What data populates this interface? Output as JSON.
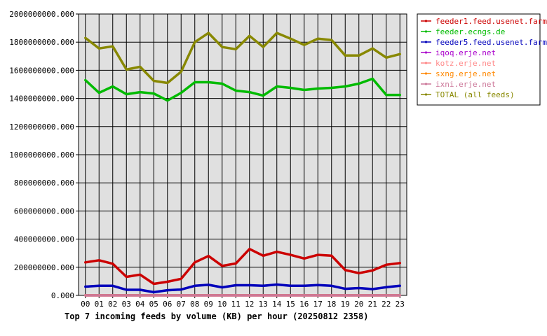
{
  "chart_data": {
    "type": "line",
    "title": "Top 7 incoming feeds by volume (KB) per hour (20250812 2358)",
    "xlabel": "",
    "ylabel": "",
    "grid": true,
    "legend_position": "top-right",
    "ylim": [
      0,
      2000000000
    ],
    "y_ticks": [
      "0.000",
      "200000000.000",
      "400000000.000",
      "600000000.000",
      "800000000.000",
      "1000000000.000",
      "1200000000.000",
      "1400000000.000",
      "1600000000.000",
      "1800000000.000",
      "2000000000.000"
    ],
    "categories": [
      "00",
      "01",
      "02",
      "03",
      "04",
      "05",
      "06",
      "07",
      "08",
      "09",
      "10",
      "11",
      "12",
      "13",
      "14",
      "15",
      "16",
      "17",
      "18",
      "19",
      "20",
      "21",
      "22",
      "23"
    ],
    "series": [
      {
        "name": "feeder1.feed.usenet.farm",
        "color": "#cc0000",
        "values": [
          235000000,
          250000000,
          225000000,
          132000000,
          148000000,
          82000000,
          97000000,
          118000000,
          235000000,
          280000000,
          210000000,
          227000000,
          330000000,
          282000000,
          310000000,
          288000000,
          262000000,
          288000000,
          282000000,
          180000000,
          158000000,
          177000000,
          218000000,
          230000000
        ]
      },
      {
        "name": "feeder.ecngs.de",
        "color": "#00bb00",
        "values": [
          1530000000,
          1440000000,
          1485000000,
          1430000000,
          1445000000,
          1435000000,
          1385000000,
          1440000000,
          1515000000,
          1515000000,
          1505000000,
          1455000000,
          1445000000,
          1420000000,
          1485000000,
          1475000000,
          1460000000,
          1470000000,
          1475000000,
          1485000000,
          1505000000,
          1540000000,
          1425000000,
          1425000000
        ]
      },
      {
        "name": "feeder5.feed.usenet.farm",
        "color": "#0000bb",
        "values": [
          62000000,
          68000000,
          68000000,
          40000000,
          40000000,
          23000000,
          37000000,
          42000000,
          68000000,
          75000000,
          57000000,
          72000000,
          72000000,
          68000000,
          77000000,
          68000000,
          68000000,
          73000000,
          68000000,
          47000000,
          52000000,
          45000000,
          58000000,
          68000000
        ]
      },
      {
        "name": "iqoq.erje.net",
        "color": "#aa00cc",
        "values": [
          500000,
          500000,
          500000,
          500000,
          500000,
          500000,
          500000,
          500000,
          500000,
          500000,
          500000,
          500000,
          500000,
          500000,
          500000,
          500000,
          500000,
          500000,
          500000,
          500000,
          500000,
          500000,
          500000,
          500000
        ]
      },
      {
        "name": "kotz.erje.net",
        "color": "#ff8888",
        "values": [
          500000,
          500000,
          500000,
          500000,
          500000,
          500000,
          500000,
          500000,
          500000,
          500000,
          500000,
          500000,
          500000,
          500000,
          500000,
          500000,
          500000,
          500000,
          500000,
          500000,
          500000,
          500000,
          500000,
          500000
        ]
      },
      {
        "name": "sxng.erje.net",
        "color": "#ff8800",
        "values": [
          500000,
          500000,
          500000,
          500000,
          500000,
          500000,
          500000,
          500000,
          500000,
          500000,
          500000,
          500000,
          500000,
          500000,
          500000,
          500000,
          500000,
          500000,
          500000,
          500000,
          500000,
          500000,
          500000,
          500000
        ]
      },
      {
        "name": "ixni.erje.net",
        "color": "#cc7799",
        "values": [
          500000,
          500000,
          500000,
          500000,
          500000,
          500000,
          500000,
          500000,
          500000,
          500000,
          500000,
          500000,
          500000,
          500000,
          500000,
          500000,
          500000,
          500000,
          500000,
          500000,
          500000,
          500000,
          500000,
          500000
        ]
      },
      {
        "name": "TOTAL (all feeds)",
        "color": "#888800",
        "values": [
          1830000000,
          1755000000,
          1770000000,
          1605000000,
          1625000000,
          1525000000,
          1510000000,
          1590000000,
          1800000000,
          1865000000,
          1765000000,
          1750000000,
          1845000000,
          1765000000,
          1865000000,
          1825000000,
          1780000000,
          1825000000,
          1815000000,
          1705000000,
          1705000000,
          1755000000,
          1690000000,
          1715000000
        ]
      }
    ]
  }
}
